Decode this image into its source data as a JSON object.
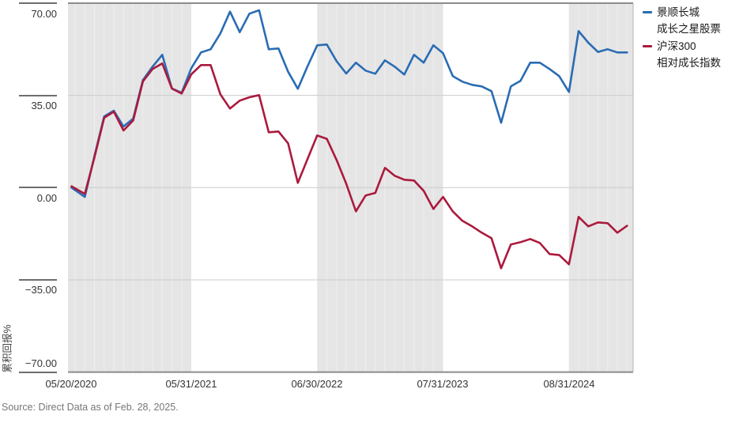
{
  "source_note": "Source: Direct  Data as of Feb. 28, 2025.",
  "colors": {
    "fund_line": "#2a6cb3",
    "index_line": "#ab1a3d",
    "year_band": "#e5e5e5",
    "band_stripe": "#efefef",
    "gridline": "#cccccc",
    "axis_border": "#8c8c8c",
    "tick_text": "#333333",
    "source_text": "#777777"
  },
  "chart_data": {
    "type": "line",
    "ylabel": "累积回报%",
    "ylim": [
      -70,
      70
    ],
    "grid": {
      "horizontal_lines": [
        35,
        0,
        -35
      ],
      "shaded_year_bands": true
    },
    "legend_position": "right",
    "yticks": [
      {
        "value": 70,
        "label": "70.00"
      },
      {
        "value": 35,
        "label": "35.00"
      },
      {
        "value": 0,
        "label": "0.00"
      },
      {
        "value": -35,
        "label": "−35.00"
      },
      {
        "value": -70,
        "label": "−70.00"
      }
    ],
    "xticks": [
      {
        "label": "05/20/2020"
      },
      {
        "label": "05/31/2021"
      },
      {
        "label": "06/30/2022"
      },
      {
        "label": "07/31/2023"
      },
      {
        "label": "08/31/2024"
      }
    ],
    "x": [
      "05/20/2020",
      "06/2020",
      "07/2020",
      "08/2020",
      "09/2020",
      "10/2020",
      "11/2020",
      "12/2020",
      "01/2021",
      "02/2021",
      "03/2021",
      "04/2021",
      "05/2021",
      "06/2021",
      "07/2021",
      "08/2021",
      "09/2021",
      "10/2021",
      "11/2021",
      "12/2021",
      "01/2022",
      "02/2022",
      "03/2022",
      "04/2022",
      "05/2022",
      "06/2022",
      "07/2022",
      "08/2022",
      "09/2022",
      "10/2022",
      "11/2022",
      "12/2022",
      "01/2023",
      "02/2023",
      "03/2023",
      "04/2023",
      "05/2023",
      "06/2023",
      "07/2023",
      "08/2023",
      "09/2023",
      "10/2023",
      "11/2023",
      "12/2023",
      "01/2024",
      "02/2024",
      "03/2024",
      "04/2024",
      "05/2024",
      "06/2024",
      "07/2024",
      "08/2024",
      "09/2024",
      "10/2024",
      "11/2024",
      "12/2024",
      "01/2025",
      "02/2025"
    ],
    "series": [
      {
        "name": "景顺长城 成长之星股票",
        "legend_lines": [
          "景顺长城",
          "成长之星股票"
        ],
        "color": "#2a6cb3",
        "values": [
          0,
          -3.5,
          12,
          27,
          29.2,
          23.2,
          26.2,
          40.8,
          45.9,
          50.4,
          37.6,
          36,
          45.3,
          51.3,
          52.5,
          58.5,
          66.8,
          59,
          66,
          67.3,
          52.5,
          52.8,
          44,
          37.5,
          46,
          54,
          54.3,
          48,
          43.3,
          47.4,
          44.4,
          43.2,
          48.3,
          45.9,
          42.9,
          50.4,
          47.4,
          54,
          51,
          42.3,
          40.2,
          39,
          38.4,
          36.6,
          24.6,
          38.4,
          40.5,
          47.4,
          47.4,
          45,
          42.3,
          36.3,
          59.4,
          55,
          51.5,
          52.5,
          51.3,
          51.3
        ]
      },
      {
        "name": "沪深300 相对成长指数",
        "legend_lines": [
          "沪深300",
          "相对成长指数"
        ],
        "color": "#ab1a3d",
        "values": [
          0.5,
          -2.4,
          11.5,
          26.5,
          28.8,
          21.7,
          25.5,
          40.3,
          45,
          47.1,
          37.6,
          35.7,
          43,
          46.5,
          46.5,
          35.4,
          30,
          33,
          34.3,
          35.1,
          21,
          21.3,
          16.8,
          1.8,
          10.8,
          19.8,
          18.5,
          10.5,
          1.5,
          -9,
          -3,
          -2,
          7.5,
          4.5,
          3,
          2.7,
          -1.2,
          -8.1,
          -3.5,
          -9,
          -12.6,
          -14.7,
          -17.1,
          -19.2,
          -30.6,
          -21.6,
          -20.7,
          -19.5,
          -21,
          -25.2,
          -25.6,
          -29.1,
          -11.1,
          -14.7,
          -13.2,
          -13.5,
          -17.1,
          -14.5
        ]
      }
    ]
  }
}
